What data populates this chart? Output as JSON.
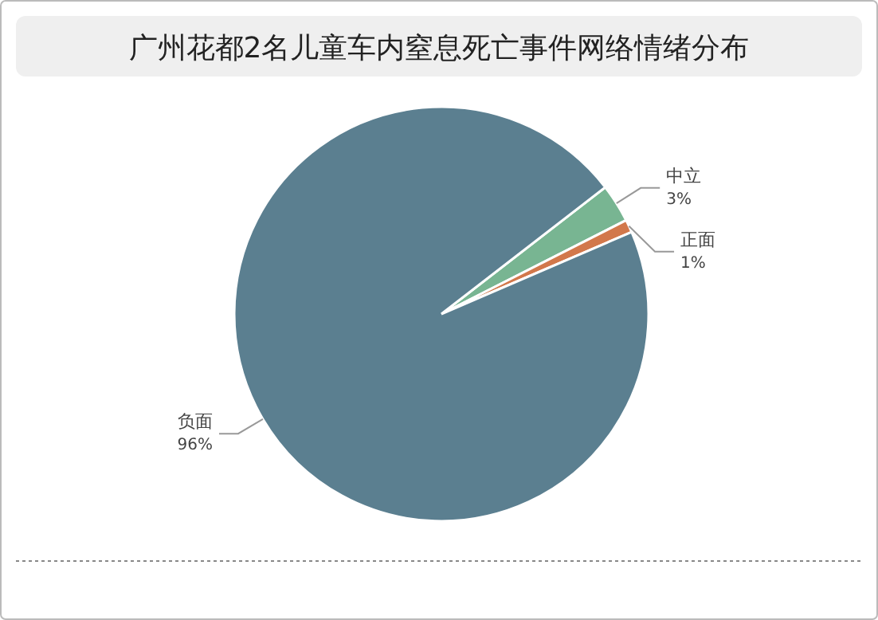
{
  "chart_data": {
    "type": "pie",
    "title": "广州花都2名儿童车内窒息死亡事件网络情绪分布",
    "categories": [
      "中立",
      "正面",
      "负面"
    ],
    "values": [
      3,
      1,
      96
    ],
    "colors": [
      "#78b592",
      "#d2784b",
      "#5b7f90"
    ],
    "value_labels": [
      "3%",
      "1%",
      "96%"
    ]
  }
}
